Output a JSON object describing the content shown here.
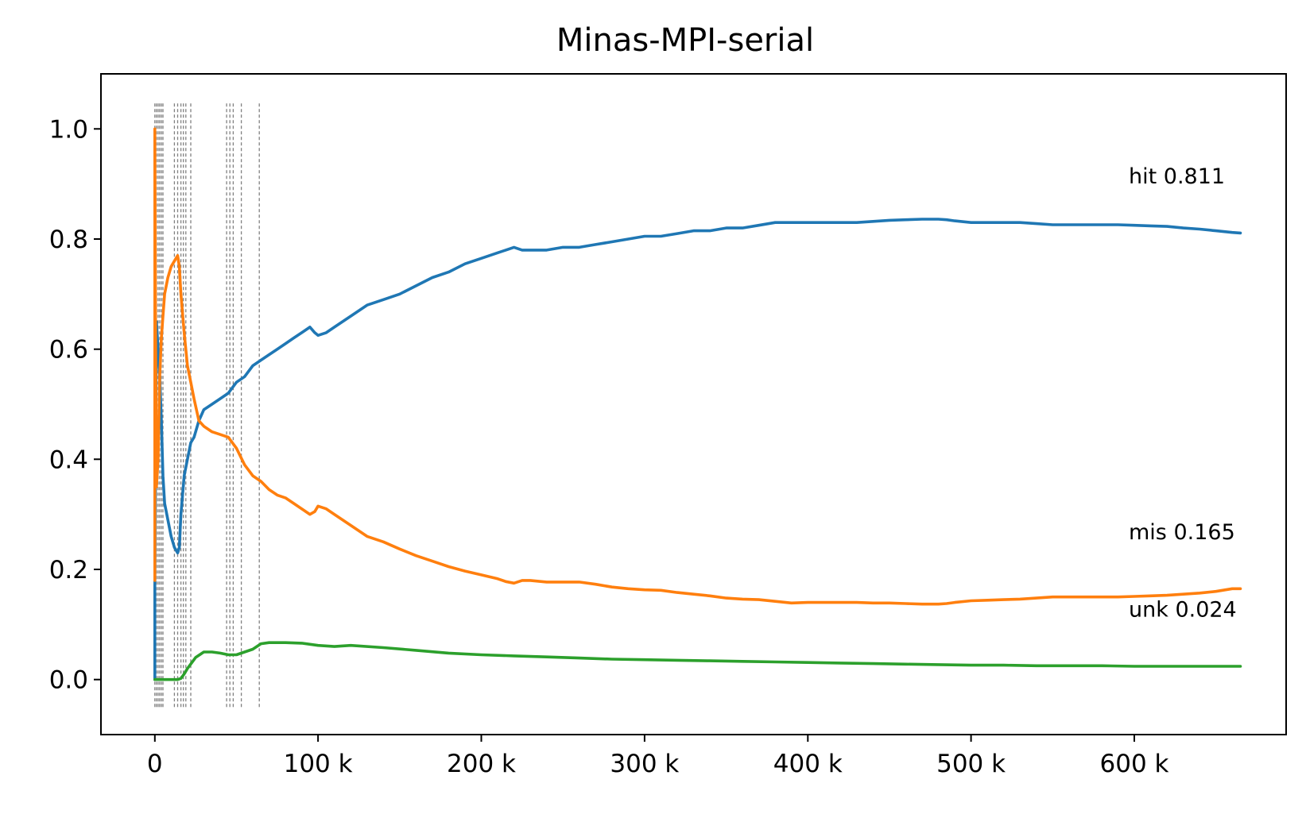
{
  "chart_data": {
    "type": "line",
    "title": "Minas-MPI-serial",
    "xlabel": "",
    "ylabel": "",
    "xlim": [
      -33000,
      693000
    ],
    "ylim": [
      -0.1,
      1.1
    ],
    "x_ticks": [
      0,
      100000,
      200000,
      300000,
      400000,
      500000,
      600000
    ],
    "x_tick_labels": [
      "0",
      "100 k",
      "200 k",
      "300 k",
      "400 k",
      "500 k",
      "600 k"
    ],
    "y_ticks": [
      0.0,
      0.2,
      0.4,
      0.6,
      0.8,
      1.0
    ],
    "y_tick_labels": [
      "0.0",
      "0.2",
      "0.4",
      "0.6",
      "0.8",
      "1.0"
    ],
    "grid": false,
    "legend": "none",
    "event_lines": {
      "color": "#808080",
      "style": "dashed",
      "y_range": [
        -0.05,
        1.05
      ],
      "x": [
        0,
        1000,
        2000,
        3000,
        4000,
        5000,
        12000,
        14000,
        16000,
        17500,
        19000,
        22000,
        44000,
        46000,
        48000,
        53000,
        64000
      ]
    },
    "series": [
      {
        "name": "hit",
        "color": "#1f77b4",
        "end_label": "hit 0.811",
        "x": [
          0,
          0,
          500,
          1000,
          2000,
          3000,
          4000,
          5000,
          6000,
          8000,
          10000,
          12000,
          14000,
          15000,
          16000,
          18000,
          20000,
          22000,
          24000,
          27000,
          30000,
          35000,
          40000,
          45000,
          50000,
          55000,
          60000,
          65000,
          70000,
          75000,
          80000,
          85000,
          90000,
          95000,
          98000,
          100000,
          105000,
          110000,
          120000,
          130000,
          140000,
          150000,
          160000,
          170000,
          180000,
          190000,
          200000,
          210000,
          215000,
          220000,
          225000,
          230000,
          240000,
          250000,
          260000,
          270000,
          280000,
          290000,
          300000,
          310000,
          320000,
          330000,
          340000,
          350000,
          360000,
          370000,
          380000,
          390000,
          400000,
          410000,
          420000,
          430000,
          440000,
          450000,
          460000,
          470000,
          480000,
          485000,
          490000,
          500000,
          510000,
          520000,
          530000,
          540000,
          550000,
          560000,
          570000,
          580000,
          590000,
          600000,
          610000,
          620000,
          630000,
          640000,
          650000,
          660000,
          665000
        ],
        "y": [
          0.0,
          0.17,
          0.4,
          0.65,
          0.6,
          0.55,
          0.47,
          0.37,
          0.32,
          0.29,
          0.26,
          0.24,
          0.23,
          0.24,
          0.3,
          0.37,
          0.4,
          0.43,
          0.44,
          0.47,
          0.49,
          0.5,
          0.51,
          0.52,
          0.54,
          0.55,
          0.57,
          0.58,
          0.59,
          0.6,
          0.61,
          0.62,
          0.63,
          0.64,
          0.63,
          0.625,
          0.63,
          0.64,
          0.66,
          0.68,
          0.69,
          0.7,
          0.715,
          0.73,
          0.74,
          0.755,
          0.765,
          0.775,
          0.78,
          0.785,
          0.78,
          0.78,
          0.78,
          0.785,
          0.785,
          0.79,
          0.795,
          0.8,
          0.805,
          0.805,
          0.81,
          0.815,
          0.815,
          0.82,
          0.82,
          0.825,
          0.83,
          0.83,
          0.83,
          0.83,
          0.83,
          0.83,
          0.832,
          0.834,
          0.835,
          0.836,
          0.836,
          0.835,
          0.833,
          0.83,
          0.83,
          0.83,
          0.83,
          0.828,
          0.826,
          0.826,
          0.826,
          0.826,
          0.826,
          0.825,
          0.824,
          0.823,
          0.82,
          0.818,
          0.815,
          0.812,
          0.811
        ]
      },
      {
        "name": "mis",
        "color": "#ff7f0e",
        "end_label": "mis 0.165",
        "x": [
          0,
          0,
          500,
          1000,
          2000,
          3000,
          4000,
          5000,
          6000,
          8000,
          10000,
          12000,
          14000,
          15000,
          16000,
          18000,
          20000,
          22000,
          24000,
          27000,
          30000,
          35000,
          40000,
          45000,
          50000,
          55000,
          60000,
          65000,
          70000,
          75000,
          80000,
          85000,
          90000,
          95000,
          98000,
          100000,
          105000,
          110000,
          120000,
          130000,
          140000,
          150000,
          160000,
          170000,
          180000,
          190000,
          200000,
          210000,
          215000,
          220000,
          225000,
          230000,
          240000,
          250000,
          260000,
          270000,
          280000,
          290000,
          300000,
          310000,
          320000,
          330000,
          340000,
          350000,
          360000,
          370000,
          380000,
          390000,
          400000,
          410000,
          420000,
          430000,
          440000,
          450000,
          460000,
          470000,
          480000,
          485000,
          490000,
          500000,
          510000,
          520000,
          530000,
          540000,
          550000,
          560000,
          570000,
          580000,
          590000,
          600000,
          610000,
          620000,
          630000,
          640000,
          650000,
          660000,
          665000
        ],
        "y": [
          0.18,
          1.0,
          0.6,
          0.35,
          0.4,
          0.55,
          0.62,
          0.66,
          0.7,
          0.73,
          0.75,
          0.76,
          0.77,
          0.75,
          0.7,
          0.63,
          0.57,
          0.54,
          0.51,
          0.47,
          0.46,
          0.45,
          0.445,
          0.44,
          0.42,
          0.39,
          0.37,
          0.36,
          0.345,
          0.335,
          0.33,
          0.32,
          0.31,
          0.3,
          0.305,
          0.315,
          0.31,
          0.3,
          0.28,
          0.26,
          0.25,
          0.237,
          0.225,
          0.215,
          0.205,
          0.197,
          0.19,
          0.183,
          0.178,
          0.175,
          0.18,
          0.18,
          0.177,
          0.177,
          0.177,
          0.173,
          0.168,
          0.165,
          0.163,
          0.162,
          0.158,
          0.155,
          0.152,
          0.148,
          0.146,
          0.145,
          0.142,
          0.139,
          0.14,
          0.14,
          0.14,
          0.14,
          0.139,
          0.139,
          0.138,
          0.137,
          0.137,
          0.138,
          0.14,
          0.143,
          0.144,
          0.145,
          0.146,
          0.148,
          0.15,
          0.15,
          0.15,
          0.15,
          0.15,
          0.151,
          0.152,
          0.153,
          0.155,
          0.157,
          0.16,
          0.165,
          0.165
        ]
      },
      {
        "name": "unk",
        "color": "#2ca02c",
        "end_label": "unk 0.024",
        "x": [
          0,
          5000,
          10000,
          14000,
          16000,
          18000,
          20000,
          25000,
          30000,
          35000,
          40000,
          45000,
          50000,
          55000,
          60000,
          65000,
          70000,
          80000,
          90000,
          100000,
          110000,
          120000,
          140000,
          160000,
          180000,
          200000,
          220000,
          240000,
          260000,
          280000,
          300000,
          320000,
          340000,
          360000,
          380000,
          400000,
          420000,
          440000,
          460000,
          480000,
          500000,
          520000,
          540000,
          560000,
          580000,
          600000,
          620000,
          640000,
          665000
        ],
        "y": [
          0.0,
          0.0,
          0.0,
          0.0,
          0.002,
          0.01,
          0.02,
          0.04,
          0.05,
          0.05,
          0.048,
          0.045,
          0.045,
          0.05,
          0.055,
          0.065,
          0.067,
          0.067,
          0.066,
          0.062,
          0.06,
          0.062,
          0.058,
          0.053,
          0.048,
          0.045,
          0.043,
          0.041,
          0.039,
          0.037,
          0.036,
          0.035,
          0.034,
          0.033,
          0.032,
          0.031,
          0.03,
          0.029,
          0.028,
          0.027,
          0.026,
          0.026,
          0.025,
          0.025,
          0.025,
          0.024,
          0.024,
          0.024,
          0.024
        ]
      }
    ]
  }
}
